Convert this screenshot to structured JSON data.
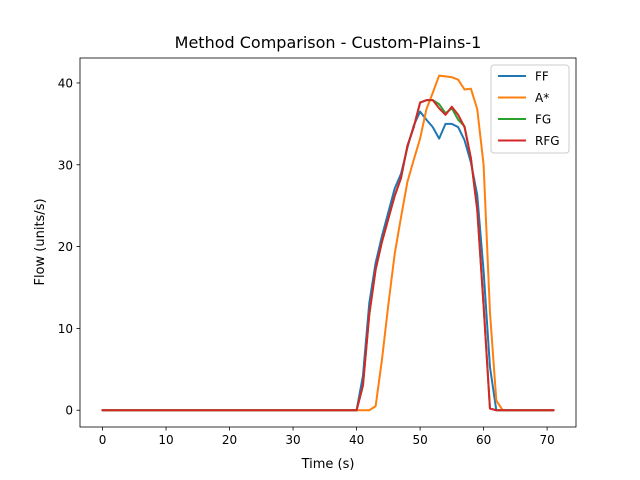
{
  "chart_data": {
    "type": "line",
    "title": "Method Comparison - Custom-Plains-1",
    "xlabel": "Time (s)",
    "ylabel": "Flow (units/s)",
    "xlim": [
      -3.55,
      74.55
    ],
    "ylim": [
      -2.05,
      43.05
    ],
    "xticks": [
      0,
      10,
      20,
      30,
      40,
      50,
      60,
      70
    ],
    "yticks": [
      0,
      10,
      20,
      30,
      40
    ],
    "grid": false,
    "legend_position": "top-right",
    "series": [
      {
        "name": "FF",
        "color": "#1f77b4",
        "points": [
          [
            0,
            0
          ],
          [
            40,
            0
          ],
          [
            41,
            4.2
          ],
          [
            42,
            13.1
          ],
          [
            43,
            18
          ],
          [
            44,
            21.3
          ],
          [
            45,
            24.2
          ],
          [
            46,
            27.1
          ],
          [
            47,
            28.9
          ],
          [
            48,
            32.1
          ],
          [
            49,
            34.8
          ],
          [
            50,
            36.5
          ],
          [
            51,
            35.5
          ],
          [
            52,
            34.6
          ],
          [
            53,
            33.2
          ],
          [
            54,
            35
          ],
          [
            55,
            35
          ],
          [
            56,
            34.6
          ],
          [
            57,
            33
          ],
          [
            58,
            30.3
          ],
          [
            59,
            26.3
          ],
          [
            60,
            17
          ],
          [
            61,
            5.3
          ],
          [
            62,
            0
          ],
          [
            63,
            0
          ],
          [
            71,
            0
          ]
        ]
      },
      {
        "name": "A*",
        "color": "#ff7f0e",
        "points": [
          [
            0,
            0
          ],
          [
            40,
            0
          ],
          [
            42,
            0
          ],
          [
            43,
            0.5
          ],
          [
            44,
            6.2
          ],
          [
            45,
            12.9
          ],
          [
            46,
            19.1
          ],
          [
            47,
            23.6
          ],
          [
            48,
            27.9
          ],
          [
            49,
            30.6
          ],
          [
            50,
            33.2
          ],
          [
            51,
            36.8
          ],
          [
            52,
            38.8
          ],
          [
            53,
            40.9
          ],
          [
            54,
            40.8
          ],
          [
            55,
            40.7
          ],
          [
            56,
            40.4
          ],
          [
            57,
            39.2
          ],
          [
            58,
            39.3
          ],
          [
            59,
            36.8
          ],
          [
            60,
            30
          ],
          [
            61,
            12
          ],
          [
            62,
            1.2
          ],
          [
            63,
            0
          ],
          [
            71,
            0
          ]
        ]
      },
      {
        "name": "FG",
        "color": "#2ca02c",
        "points": [
          [
            0,
            0
          ],
          [
            40,
            0
          ],
          [
            41,
            3
          ],
          [
            42,
            11.7
          ],
          [
            43,
            17.2
          ],
          [
            44,
            20.6
          ],
          [
            45,
            23.4
          ],
          [
            46,
            26.2
          ],
          [
            47,
            28.4
          ],
          [
            48,
            32.3
          ],
          [
            49,
            34.6
          ],
          [
            50,
            37.6
          ],
          [
            51,
            37.9
          ],
          [
            52,
            37.9
          ],
          [
            53,
            37.4
          ],
          [
            54,
            36.3
          ],
          [
            55,
            36.9
          ],
          [
            56,
            35.5
          ],
          [
            57,
            34.7
          ],
          [
            58,
            30.8
          ],
          [
            59,
            24.5
          ],
          [
            60,
            12.8
          ],
          [
            61,
            0.2
          ],
          [
            62,
            0
          ],
          [
            71,
            0
          ]
        ]
      },
      {
        "name": "RFG",
        "color": "#d62728",
        "points": [
          [
            0,
            0
          ],
          [
            40,
            0
          ],
          [
            41,
            3
          ],
          [
            42,
            11.7
          ],
          [
            43,
            17.2
          ],
          [
            44,
            20.6
          ],
          [
            45,
            23.4
          ],
          [
            46,
            26.2
          ],
          [
            47,
            28.4
          ],
          [
            48,
            32.3
          ],
          [
            49,
            34.6
          ],
          [
            50,
            37.6
          ],
          [
            51,
            37.9
          ],
          [
            52,
            37.9
          ],
          [
            53,
            36.9
          ],
          [
            54,
            36.1
          ],
          [
            55,
            37.1
          ],
          [
            56,
            36.1
          ],
          [
            57,
            34.6
          ],
          [
            58,
            30.8
          ],
          [
            59,
            24.5
          ],
          [
            60,
            12.8
          ],
          [
            61,
            0.2
          ],
          [
            62,
            0
          ],
          [
            71,
            0
          ]
        ]
      }
    ]
  }
}
